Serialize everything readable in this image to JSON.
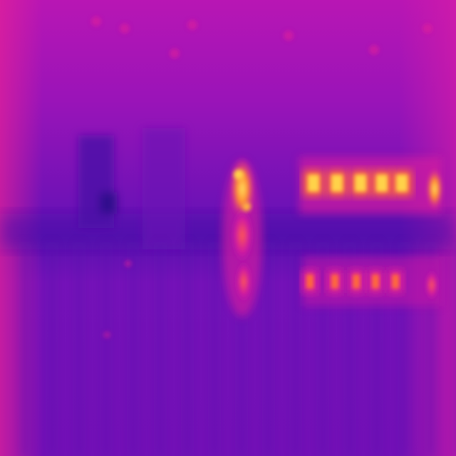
{
  "image": {
    "subject": "thermal-camera-view",
    "palette": {
      "cold": "#5a12b0",
      "cool": "#7a10b8",
      "mid": "#b014b0",
      "warm": "#e0209a",
      "hot": "#ff6a3a",
      "hottest": "#ffd24a"
    }
  }
}
